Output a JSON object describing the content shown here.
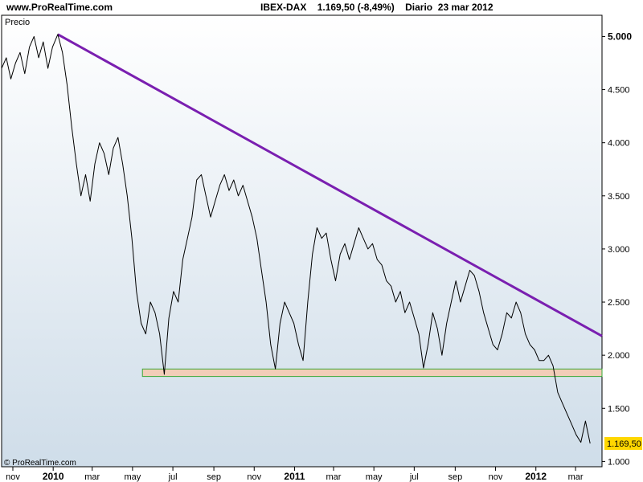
{
  "header": {
    "site": "www.ProRealTime.com",
    "instrument": "IBEX-DAX",
    "last_value": "1.169,50",
    "change": "(-8,49%)",
    "period": "Diario",
    "date": "23 mar 2012"
  },
  "panel_label": "Precio",
  "footer_copyright": "© ProRealTime.com",
  "colors": {
    "plot_bg_top": "#ffffff",
    "plot_bg_bottom": "#cfdde9",
    "price_line": "#000000",
    "trendline": "#7a1fb0",
    "support_fill": "#f2cdb8",
    "support_stroke": "#39a836",
    "last_badge": "#ffd700"
  },
  "chart_data": {
    "type": "line",
    "title": "IBEX-DAX",
    "ylim": [
      950,
      5200
    ],
    "y_ticks": [
      {
        "value": 1000,
        "label": "1.000",
        "bold": false
      },
      {
        "value": 1500,
        "label": "1.500",
        "bold": false
      },
      {
        "value": 2000,
        "label": "2.000",
        "bold": false
      },
      {
        "value": 2500,
        "label": "2.500",
        "bold": false
      },
      {
        "value": 3000,
        "label": "3.000",
        "bold": false
      },
      {
        "value": 3500,
        "label": "3.500",
        "bold": false
      },
      {
        "value": 4000,
        "label": "4.000",
        "bold": false
      },
      {
        "value": 4500,
        "label": "4.500",
        "bold": false
      },
      {
        "value": 5000,
        "label": "5.000",
        "bold": true
      }
    ],
    "x_range": [
      "2009-10-15",
      "2012-04-10"
    ],
    "x_ticks": [
      {
        "date": "2009-11-01",
        "label": "nov",
        "bold": false
      },
      {
        "date": "2010-01-01",
        "label": "2010",
        "bold": true
      },
      {
        "date": "2010-03-01",
        "label": "mar",
        "bold": false
      },
      {
        "date": "2010-05-01",
        "label": "may",
        "bold": false
      },
      {
        "date": "2010-07-01",
        "label": "jul",
        "bold": false
      },
      {
        "date": "2010-09-01",
        "label": "sep",
        "bold": false
      },
      {
        "date": "2010-11-01",
        "label": "nov",
        "bold": false
      },
      {
        "date": "2011-01-01",
        "label": "2011",
        "bold": true
      },
      {
        "date": "2011-03-01",
        "label": "mar",
        "bold": false
      },
      {
        "date": "2011-05-01",
        "label": "may",
        "bold": false
      },
      {
        "date": "2011-07-01",
        "label": "jul",
        "bold": false
      },
      {
        "date": "2011-09-01",
        "label": "sep",
        "bold": false
      },
      {
        "date": "2011-11-01",
        "label": "nov",
        "bold": false
      },
      {
        "date": "2012-01-01",
        "label": "2012",
        "bold": true
      },
      {
        "date": "2012-03-01",
        "label": "mar",
        "bold": false
      }
    ],
    "series": [
      {
        "points": [
          [
            "2009-10-15",
            4700
          ],
          [
            "2009-10-22",
            4800
          ],
          [
            "2009-10-29",
            4600
          ],
          [
            "2009-11-05",
            4750
          ],
          [
            "2009-11-12",
            4850
          ],
          [
            "2009-11-19",
            4650
          ],
          [
            "2009-11-26",
            4900
          ],
          [
            "2009-12-03",
            5000
          ],
          [
            "2009-12-10",
            4800
          ],
          [
            "2009-12-17",
            4950
          ],
          [
            "2009-12-24",
            4700
          ],
          [
            "2009-12-31",
            4900
          ],
          [
            "2010-01-08",
            5020
          ],
          [
            "2010-01-15",
            4850
          ],
          [
            "2010-01-22",
            4550
          ],
          [
            "2010-01-29",
            4150
          ],
          [
            "2010-02-05",
            3800
          ],
          [
            "2010-02-12",
            3500
          ],
          [
            "2010-02-19",
            3700
          ],
          [
            "2010-02-26",
            3450
          ],
          [
            "2010-03-05",
            3800
          ],
          [
            "2010-03-12",
            4000
          ],
          [
            "2010-03-19",
            3900
          ],
          [
            "2010-03-26",
            3700
          ],
          [
            "2010-04-02",
            3950
          ],
          [
            "2010-04-09",
            4050
          ],
          [
            "2010-04-16",
            3800
          ],
          [
            "2010-04-23",
            3500
          ],
          [
            "2010-04-30",
            3100
          ],
          [
            "2010-05-07",
            2600
          ],
          [
            "2010-05-14",
            2300
          ],
          [
            "2010-05-21",
            2200
          ],
          [
            "2010-05-28",
            2500
          ],
          [
            "2010-06-04",
            2400
          ],
          [
            "2010-06-11",
            2200
          ],
          [
            "2010-06-18",
            1820
          ],
          [
            "2010-06-25",
            2350
          ],
          [
            "2010-07-02",
            2600
          ],
          [
            "2010-07-09",
            2500
          ],
          [
            "2010-07-16",
            2900
          ],
          [
            "2010-07-23",
            3100
          ],
          [
            "2010-07-30",
            3300
          ],
          [
            "2010-08-06",
            3650
          ],
          [
            "2010-08-13",
            3700
          ],
          [
            "2010-08-20",
            3500
          ],
          [
            "2010-08-27",
            3300
          ],
          [
            "2010-09-03",
            3450
          ],
          [
            "2010-09-10",
            3600
          ],
          [
            "2010-09-17",
            3700
          ],
          [
            "2010-09-24",
            3550
          ],
          [
            "2010-10-01",
            3650
          ],
          [
            "2010-10-08",
            3500
          ],
          [
            "2010-10-15",
            3600
          ],
          [
            "2010-10-22",
            3450
          ],
          [
            "2010-10-29",
            3300
          ],
          [
            "2010-11-05",
            3100
          ],
          [
            "2010-11-12",
            2800
          ],
          [
            "2010-11-19",
            2500
          ],
          [
            "2010-11-26",
            2100
          ],
          [
            "2010-12-03",
            1870
          ],
          [
            "2010-12-10",
            2300
          ],
          [
            "2010-12-17",
            2500
          ],
          [
            "2010-12-24",
            2400
          ],
          [
            "2010-12-31",
            2300
          ],
          [
            "2011-01-07",
            2100
          ],
          [
            "2011-01-14",
            1950
          ],
          [
            "2011-01-21",
            2500
          ],
          [
            "2011-01-28",
            2950
          ],
          [
            "2011-02-04",
            3200
          ],
          [
            "2011-02-11",
            3100
          ],
          [
            "2011-02-18",
            3150
          ],
          [
            "2011-02-25",
            2900
          ],
          [
            "2011-03-04",
            2700
          ],
          [
            "2011-03-11",
            2950
          ],
          [
            "2011-03-18",
            3050
          ],
          [
            "2011-03-25",
            2900
          ],
          [
            "2011-04-01",
            3050
          ],
          [
            "2011-04-08",
            3200
          ],
          [
            "2011-04-15",
            3100
          ],
          [
            "2011-04-22",
            3000
          ],
          [
            "2011-04-29",
            3050
          ],
          [
            "2011-05-06",
            2900
          ],
          [
            "2011-05-13",
            2850
          ],
          [
            "2011-05-20",
            2700
          ],
          [
            "2011-05-27",
            2650
          ],
          [
            "2011-06-03",
            2500
          ],
          [
            "2011-06-10",
            2600
          ],
          [
            "2011-06-17",
            2400
          ],
          [
            "2011-06-24",
            2500
          ],
          [
            "2011-07-01",
            2350
          ],
          [
            "2011-07-08",
            2200
          ],
          [
            "2011-07-15",
            1880
          ],
          [
            "2011-07-22",
            2100
          ],
          [
            "2011-07-29",
            2400
          ],
          [
            "2011-08-05",
            2250
          ],
          [
            "2011-08-12",
            2000
          ],
          [
            "2011-08-19",
            2300
          ],
          [
            "2011-08-26",
            2500
          ],
          [
            "2011-09-02",
            2700
          ],
          [
            "2011-09-09",
            2500
          ],
          [
            "2011-09-16",
            2650
          ],
          [
            "2011-09-23",
            2800
          ],
          [
            "2011-09-30",
            2750
          ],
          [
            "2011-10-07",
            2600
          ],
          [
            "2011-10-14",
            2400
          ],
          [
            "2011-10-21",
            2250
          ],
          [
            "2011-10-28",
            2100
          ],
          [
            "2011-11-04",
            2050
          ],
          [
            "2011-11-11",
            2200
          ],
          [
            "2011-11-18",
            2400
          ],
          [
            "2011-11-25",
            2350
          ],
          [
            "2011-12-02",
            2500
          ],
          [
            "2011-12-09",
            2400
          ],
          [
            "2011-12-16",
            2200
          ],
          [
            "2011-12-23",
            2100
          ],
          [
            "2011-12-30",
            2050
          ],
          [
            "2012-01-06",
            1950
          ],
          [
            "2012-01-13",
            1950
          ],
          [
            "2012-01-20",
            2000
          ],
          [
            "2012-01-27",
            1900
          ],
          [
            "2012-02-03",
            1650
          ],
          [
            "2012-02-10",
            1550
          ],
          [
            "2012-02-17",
            1450
          ],
          [
            "2012-02-24",
            1350
          ],
          [
            "2012-03-02",
            1250
          ],
          [
            "2012-03-09",
            1180
          ],
          [
            "2012-03-16",
            1380
          ],
          [
            "2012-03-23",
            1169.5
          ]
        ]
      }
    ],
    "trendline": {
      "from": [
        "2010-01-08",
        5020
      ],
      "to": [
        "2012-04-10",
        2180
      ]
    },
    "support_zone": {
      "from_date": "2010-05-16",
      "to_date": "2012-04-10",
      "low": 1800,
      "high": 1870
    },
    "last_value_label": "1.169,50",
    "last_value": 1169.5,
    "grid": false
  }
}
